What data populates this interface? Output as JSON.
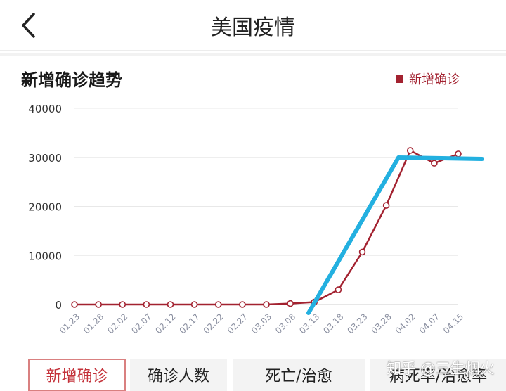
{
  "header": {
    "title": "美国疫情",
    "back_icon": "chevron-left-icon"
  },
  "card": {
    "title": "新增确诊趋势",
    "legend_label": "新增确诊"
  },
  "colors": {
    "series": "#a32230",
    "annotation": "#23b0e0",
    "tab_active": "#c4323a"
  },
  "chart_data": {
    "type": "line",
    "title": "新增确诊趋势",
    "series": [
      {
        "name": "新增确诊",
        "x": [
          "01.23",
          "01.28",
          "02.02",
          "02.07",
          "02.12",
          "02.17",
          "02.22",
          "02.27",
          "03.03",
          "03.08",
          "03.13",
          "03.18",
          "03.23",
          "03.28",
          "04.02",
          "04.07",
          "04.15"
        ],
        "values": [
          0,
          0,
          0,
          0,
          0,
          0,
          0,
          0,
          0,
          200,
          500,
          3000,
          10700,
          20200,
          31400,
          28800,
          30700
        ]
      }
    ],
    "x_tick_labels": [
      "01.23",
      "01.28",
      "02.02",
      "02.07",
      "02.12",
      "02.17",
      "02.22",
      "02.27",
      "03.03",
      "03.08",
      "03.13",
      "03.18",
      "03.23",
      "03.28",
      "04.02",
      "04.07",
      "04.15"
    ],
    "y_tick_labels": [
      "40000",
      "30000",
      "20000",
      "10000",
      "0"
    ],
    "ylim": [
      0,
      40000
    ],
    "grid": true,
    "legend_position": "top-right"
  },
  "tabs": [
    {
      "label": "新增确诊",
      "active": true
    },
    {
      "label": "确诊人数",
      "active": false
    },
    {
      "label": "死亡/治愈",
      "active": false
    },
    {
      "label": "病死率/治愈率",
      "active": false
    }
  ],
  "watermark": "知乎 @三生烟火"
}
